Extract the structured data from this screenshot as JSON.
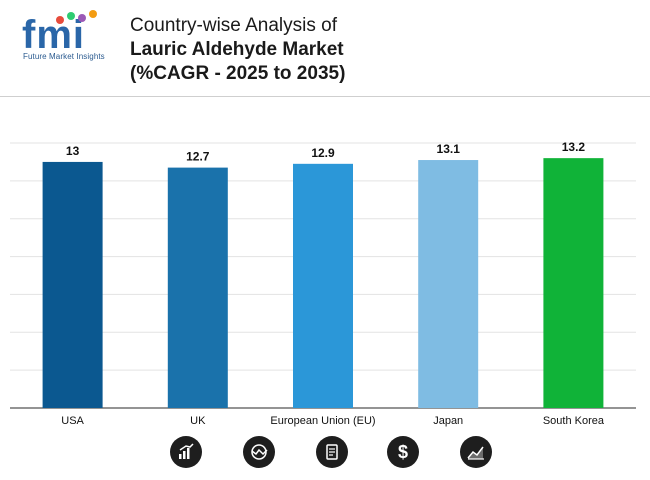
{
  "header": {
    "logo_text": "fmi",
    "logo_tagline": "Future Market Insights",
    "title_line1": "Country-wise Analysis of",
    "title_line2": "Lauric Aldehyde Market",
    "title_line3": "(%CAGR - 2025 to 2035)"
  },
  "chart_data": {
    "type": "bar",
    "title": "Country-wise Analysis of Lauric Aldehyde Market (%CAGR - 2025 to 2035)",
    "categories": [
      "USA",
      "UK",
      "European Union (EU)",
      "Japan",
      "South Korea"
    ],
    "values": [
      13,
      12.7,
      12.9,
      13.1,
      13.2
    ],
    "value_labels": [
      "13",
      "12.7",
      "12.9",
      "13.1",
      "13.2"
    ],
    "colors": [
      "#0b5890",
      "#1a72ab",
      "#2b97d8",
      "#7fbce3",
      "#10b338"
    ],
    "xlabel": "",
    "ylabel": "",
    "ylim": [
      0,
      14
    ],
    "grid": true,
    "legend": "none"
  },
  "footer": {
    "icons": [
      "bar-chart-icon",
      "globe-chart-icon",
      "document-icon",
      "dollar-icon",
      "trend-chart-icon"
    ]
  }
}
